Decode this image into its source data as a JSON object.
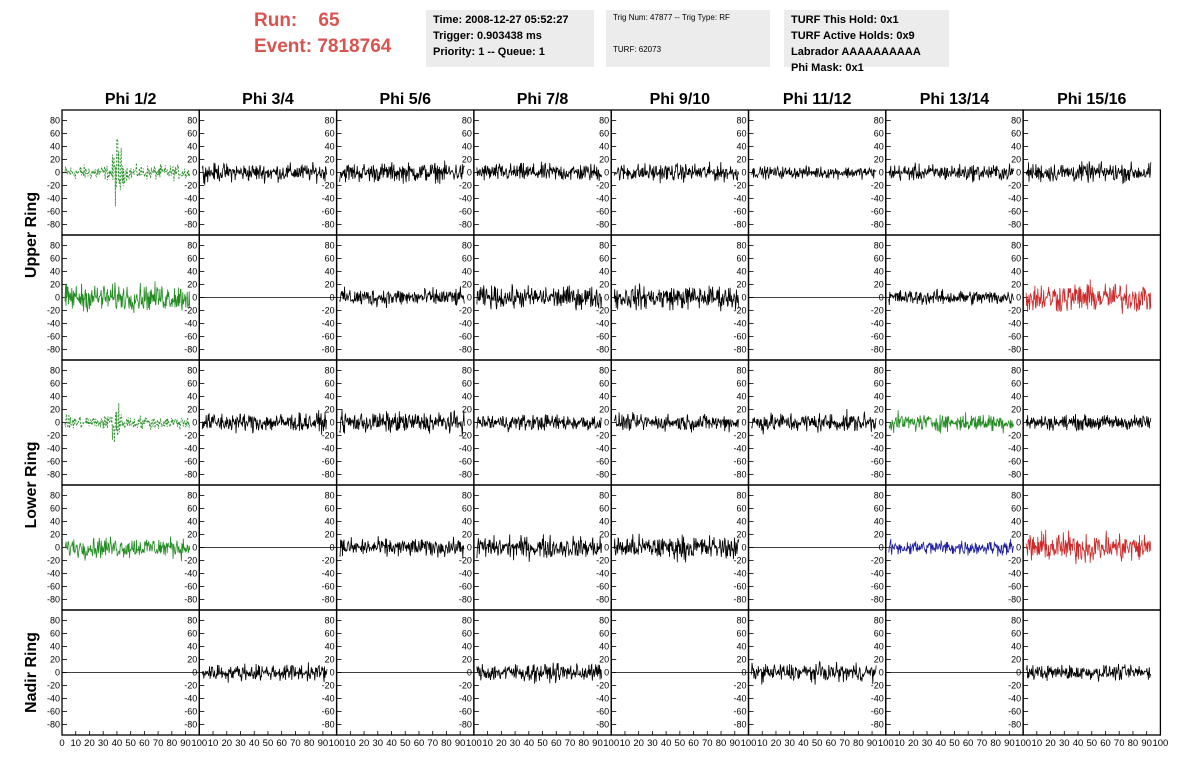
{
  "run": {
    "label": "Run:",
    "value": "65"
  },
  "event": {
    "label": "Event:",
    "value": "7818764"
  },
  "box1": [
    "Time: 2008-12-27 05:52:27",
    "Trigger: 0.903438 ms",
    "Priority: 1 -- Queue: 1"
  ],
  "box2": {
    "line1": "Trig Num: 47877 -- Trig Type: RF",
    "line2": "TURF: 62073"
  },
  "box3": [
    "TURF This Hold: 0x1",
    "TURF Active Holds: 0x9",
    "Labrador AAAAAAAAAA",
    "Phi Mask: 0x1"
  ],
  "columns": [
    "Phi 1/2",
    "Phi 3/4",
    "Phi 5/6",
    "Phi 7/8",
    "Phi 9/10",
    "Phi 11/12",
    "Phi 13/14",
    "Phi 15/16"
  ],
  "rings": [
    "Upper Ring",
    "Lower Ring",
    "Nadir Ring"
  ],
  "colors": {
    "black": "#000000",
    "green": "#228B22",
    "blue": "#1f1f9e",
    "red": "#cc2a2a",
    "run_text": "#d9534f",
    "box_bg": "#ececec"
  },
  "chart_data": {
    "type": "line",
    "xlim": [
      0,
      100
    ],
    "ylim": [
      -90,
      90
    ],
    "y_ticks": [
      -80,
      -60,
      -40,
      -20,
      0,
      20,
      40,
      60,
      80
    ],
    "x_ticks": [
      0,
      10,
      20,
      30,
      40,
      50,
      60,
      70,
      80,
      90,
      100
    ],
    "sample_count": 256,
    "panels": [
      [
        {
          "style": "green-dashed",
          "amp": 10,
          "burst_x": 40,
          "burst_amp": 45
        },
        {
          "style": "black",
          "amp": 12
        },
        {
          "style": "black",
          "amp": 13
        },
        {
          "style": "black",
          "amp": 12
        },
        {
          "style": "black",
          "amp": 12
        },
        {
          "style": "black",
          "amp": 8
        },
        {
          "style": "black",
          "amp": 11
        },
        {
          "style": "black",
          "amp": 13
        }
      ],
      [
        {
          "style": "green",
          "amp": 18
        },
        {
          "style": "flat",
          "amp": 0
        },
        {
          "style": "black",
          "amp": 12
        },
        {
          "style": "black",
          "amp": 15
        },
        {
          "style": "black",
          "amp": 16
        },
        {
          "style": "flat",
          "amp": 0
        },
        {
          "style": "black",
          "amp": 10
        },
        {
          "style": "red",
          "amp": 20
        }
      ],
      [
        {
          "style": "green-dashed",
          "amp": 9,
          "burst_x": 38,
          "burst_amp": 35
        },
        {
          "style": "black",
          "amp": 13
        },
        {
          "style": "black",
          "amp": 14
        },
        {
          "style": "black",
          "amp": 11
        },
        {
          "style": "black",
          "amp": 11
        },
        {
          "style": "black",
          "amp": 13
        },
        {
          "style": "green",
          "amp": 12
        },
        {
          "style": "black",
          "amp": 10
        }
      ],
      [
        {
          "style": "green",
          "amp": 14
        },
        {
          "style": "flat",
          "amp": 0
        },
        {
          "style": "black",
          "amp": 12
        },
        {
          "style": "black",
          "amp": 15
        },
        {
          "style": "black",
          "amp": 16
        },
        {
          "style": "flat",
          "amp": 0
        },
        {
          "style": "blue",
          "amp": 10
        },
        {
          "style": "red",
          "amp": 20
        }
      ],
      [
        {
          "style": "flat",
          "amp": 0
        },
        {
          "style": "black",
          "amp": 11
        },
        {
          "style": "flat",
          "amp": 0
        },
        {
          "style": "black",
          "amp": 12
        },
        {
          "style": "flat",
          "amp": 0
        },
        {
          "style": "black",
          "amp": 12
        },
        {
          "style": "flat",
          "amp": 0
        },
        {
          "style": "black",
          "amp": 10
        }
      ]
    ]
  }
}
